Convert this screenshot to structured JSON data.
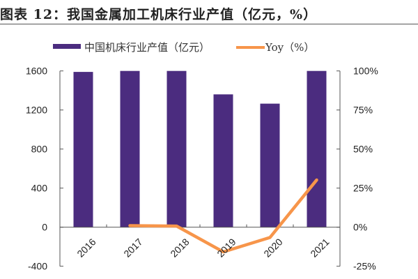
{
  "title": "图表 12：我国金属加工机床行业产值（亿元，%）",
  "chart_data": {
    "type": "bar+line",
    "categories": [
      "2016",
      "2017",
      "2018",
      "2019",
      "2020",
      "2021"
    ],
    "series": [
      {
        "name": "中国机床行业产值（亿元）",
        "type": "bar",
        "axis": "left",
        "color": "#4b2c7f",
        "values": [
          1590,
          1600,
          1600,
          1360,
          1265,
          1600
        ]
      },
      {
        "name": "Yoy（%）",
        "type": "line",
        "axis": "right",
        "color": "#f7954a",
        "values": [
          null,
          1.0,
          0.7,
          -15.8,
          -6.6,
          30.2
        ]
      }
    ],
    "left_axis": {
      "ylim": [
        -400,
        1600
      ],
      "ticks": [
        -400,
        0,
        400,
        800,
        1200,
        1600
      ],
      "tick_labels": [
        "-400",
        "0",
        "400",
        "800",
        "1200",
        "1600"
      ]
    },
    "right_axis": {
      "ylim": [
        -25,
        100
      ],
      "ticks": [
        -25,
        0,
        25,
        50,
        75,
        100
      ],
      "tick_labels": [
        "-25%",
        "0%",
        "25%",
        "50%",
        "75%",
        "100%"
      ]
    },
    "grid": false,
    "legend": "top"
  }
}
